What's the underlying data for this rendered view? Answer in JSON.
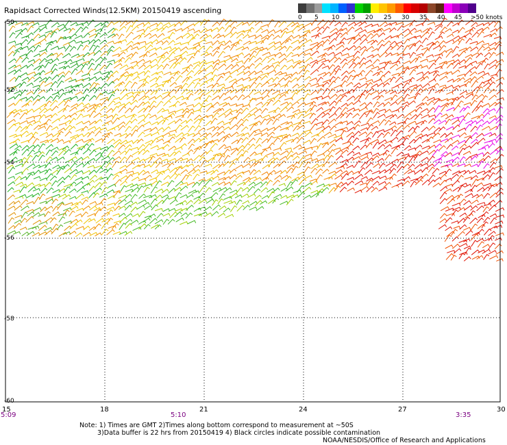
{
  "title": "Rapidsact Corrected Winds(12.5KM) 20150419 ascending",
  "legend": {
    "labels": [
      "0",
      "5",
      "10",
      "15",
      "20",
      "25",
      "30",
      "35",
      "40",
      "45",
      ">50 knots"
    ],
    "colors": [
      "#3c3c3c",
      "#707070",
      "#9c9c9c",
      "#00e1ff",
      "#00b4ff",
      "#0060ff",
      "#3030d0",
      "#00d200",
      "#00a000",
      "#ffee00",
      "#ffc400",
      "#ff9a00",
      "#ff5a00",
      "#ff0000",
      "#d80000",
      "#b40000",
      "#8c4628",
      "#5a2810",
      "#ff00ff",
      "#c000d0",
      "#8a00b8",
      "#50008c"
    ]
  },
  "map": {
    "lat_labels": [
      "-50",
      "-52",
      "-54",
      "-56",
      "-58",
      "-60"
    ],
    "lon_labels": [
      "15",
      "18",
      "21",
      "24",
      "27",
      "30"
    ],
    "time_labels": [
      "5:09",
      "5:10",
      "3:35"
    ],
    "grid": true,
    "wind_barbs": "swath of wind barbs coloured by speed; white areas = no data"
  },
  "notes": {
    "line1": "Note: 1) Times are GMT 2)Times along bottom correspond to measurement at ~50S",
    "line2": "3)Data buffer is 22 hrs from 20150419 4) Black circles indicate possible contamination",
    "line3": "NOAA/NESDIS/Office of Research and Applications"
  }
}
